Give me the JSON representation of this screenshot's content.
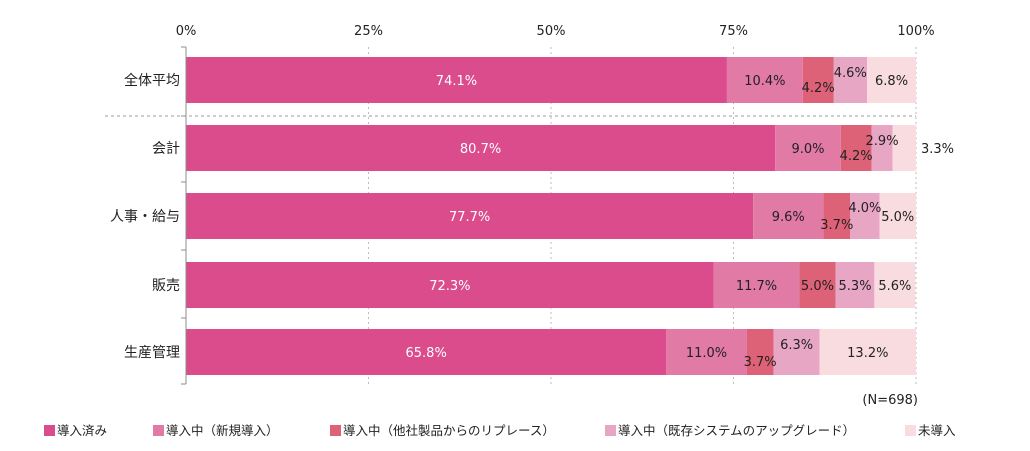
{
  "chart_data": {
    "type": "bar",
    "orientation": "horizontal",
    "stacked": true,
    "categories": [
      "全体平均",
      "会計",
      "人事・給与",
      "販売",
      "生産管理"
    ],
    "series": [
      {
        "name": "導入済み",
        "color": "#DA4C8C",
        "values": [
          74.1,
          80.7,
          77.7,
          72.3,
          65.8
        ]
      },
      {
        "name": "導入中（新規導入）",
        "color": "#E27AA6",
        "values": [
          10.4,
          9.0,
          9.6,
          11.7,
          11.0
        ]
      },
      {
        "name": "導入中（他社製品からのリプレース）",
        "color": "#DE6277",
        "values": [
          4.2,
          4.2,
          3.7,
          5.0,
          3.7
        ]
      },
      {
        "name": "導入中（既存システムのアップグレード）",
        "color": "#E8A6C5",
        "values": [
          4.6,
          2.9,
          4.0,
          5.3,
          6.3
        ]
      },
      {
        "name": "未導入",
        "color": "#F9DCDF",
        "values": [
          6.8,
          3.3,
          5.0,
          5.6,
          13.2
        ]
      }
    ],
    "data_labels": [
      [
        "74.1%",
        "80.7%",
        "77.7%",
        "72.3%",
        "65.8%"
      ],
      [
        "10.4%",
        "9.0%",
        "9.6%",
        "11.7%",
        "11.0%"
      ],
      [
        "4.2%",
        "4.2%",
        "3.7%",
        "5.0%",
        "3.7%"
      ],
      [
        "4.6%",
        "2.9%",
        "4.0%",
        "5.3%",
        "6.3%"
      ],
      [
        "6.8%",
        "3.3%",
        "5.0%",
        "5.6%",
        "13.2%"
      ]
    ],
    "xticks": [
      "0%",
      "25%",
      "50%",
      "75%",
      "100%"
    ],
    "xlim": [
      0,
      100
    ],
    "x_axis_position": "top",
    "grid": true,
    "legend_position": "bottom",
    "annotation": "(N=698)"
  }
}
